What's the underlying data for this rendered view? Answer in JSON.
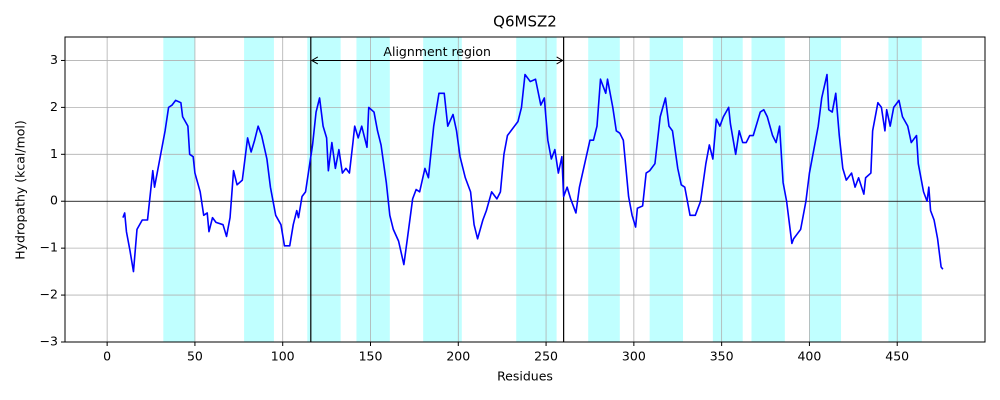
{
  "chart_data": {
    "type": "line",
    "title": "Q6MSZ2",
    "x_label": "Residues",
    "y_label": "Hydropathy (kcal/mol)",
    "xlim": [
      -24,
      500
    ],
    "ylim": [
      -3,
      3.5
    ],
    "xticks": [
      0,
      50,
      100,
      150,
      200,
      250,
      300,
      350,
      400,
      450
    ],
    "yticks": [
      {
        "value": -3,
        "label": "−3"
      },
      {
        "value": -2,
        "label": "−2"
      },
      {
        "value": -1,
        "label": "−1"
      },
      0,
      1,
      2,
      3
    ],
    "grid": true,
    "shaded_regions": [
      [
        32,
        50
      ],
      [
        78,
        95
      ],
      [
        114,
        133
      ],
      [
        142,
        161
      ],
      [
        180,
        202
      ],
      [
        233,
        256
      ],
      [
        274,
        292
      ],
      [
        309,
        328
      ],
      [
        345,
        362
      ],
      [
        367,
        386
      ],
      [
        400,
        418
      ],
      [
        445,
        464
      ]
    ],
    "shade_color": "#c0ffff",
    "vlines": [
      116,
      260
    ],
    "hlines": [
      0
    ],
    "annotation": {
      "text": "Alignment region",
      "x": [
        116,
        260
      ],
      "y": 3
    },
    "series": [
      {
        "name": "Q6MSZ2",
        "color": "#0000ff",
        "x": [
          9,
          10,
          11,
          13,
          15,
          17,
          20,
          23,
          26,
          27,
          30,
          33,
          35,
          37,
          39,
          42,
          43,
          46,
          47,
          49,
          50,
          53,
          55,
          57,
          58,
          60,
          62,
          66,
          68,
          70,
          72,
          74,
          77,
          80,
          82,
          84,
          86,
          88,
          91,
          93,
          96,
          99,
          101,
          104,
          106,
          108,
          109,
          111,
          113,
          115,
          117,
          119,
          121,
          123,
          125,
          126,
          128,
          130,
          132,
          134,
          136,
          138,
          140,
          141,
          143,
          145,
          148,
          149,
          152,
          154,
          156,
          159,
          161,
          163,
          166,
          169,
          171,
          174,
          176,
          178,
          181,
          183,
          186,
          189,
          192,
          194,
          197,
          199,
          201,
          204,
          207,
          209,
          211,
          214,
          216,
          219,
          222,
          224,
          226,
          228,
          231,
          234,
          236,
          238,
          241,
          244,
          247,
          249,
          251,
          253,
          255,
          257,
          259,
          260,
          262,
          264,
          267,
          269,
          272,
          275,
          277,
          279,
          281,
          284,
          285,
          288,
          290,
          292,
          294,
          297,
          299,
          301,
          302,
          305,
          307,
          309,
          312,
          315,
          318,
          320,
          322,
          325,
          327,
          329,
          332,
          335,
          338,
          341,
          343,
          345,
          347,
          349,
          351,
          354,
          355,
          358,
          360,
          362,
          364,
          366,
          368,
          372,
          374,
          376,
          379,
          381,
          383,
          385,
          387,
          390,
          391,
          393,
          395,
          398,
          400,
          403,
          405,
          407,
          410,
          411,
          413,
          415,
          417,
          419,
          421,
          424,
          426,
          428,
          431,
          432,
          435,
          436,
          439,
          441,
          443,
          444,
          446,
          448,
          451,
          453,
          456,
          458,
          461,
          462,
          465,
          467,
          468,
          469,
          471,
          473,
          475,
          476
        ],
        "values": [
          -0.35,
          -0.25,
          -0.65,
          -1.05,
          -1.5,
          -0.6,
          -0.4,
          -0.4,
          0.65,
          0.3,
          0.9,
          1.5,
          2.0,
          2.05,
          2.15,
          2.1,
          1.8,
          1.6,
          1.0,
          0.95,
          0.6,
          0.2,
          -0.3,
          -0.25,
          -0.65,
          -0.35,
          -0.45,
          -0.5,
          -0.75,
          -0.35,
          0.65,
          0.35,
          0.45,
          1.35,
          1.05,
          1.3,
          1.6,
          1.4,
          0.9,
          0.3,
          -0.3,
          -0.5,
          -0.95,
          -0.95,
          -0.5,
          -0.2,
          -0.35,
          0.1,
          0.2,
          0.7,
          1.2,
          1.9,
          2.2,
          1.6,
          1.35,
          0.65,
          1.25,
          0.7,
          1.1,
          0.6,
          0.7,
          0.6,
          1.25,
          1.6,
          1.35,
          1.6,
          1.15,
          2.0,
          1.9,
          1.5,
          1.2,
          0.4,
          -0.3,
          -0.6,
          -0.85,
          -1.35,
          -0.8,
          0.05,
          0.25,
          0.2,
          0.7,
          0.5,
          1.6,
          2.3,
          2.3,
          1.6,
          1.85,
          1.5,
          0.95,
          0.5,
          0.2,
          -0.5,
          -0.8,
          -0.4,
          -0.2,
          0.2,
          0.05,
          0.2,
          1.0,
          1.4,
          1.55,
          1.7,
          2.0,
          2.7,
          2.55,
          2.6,
          2.05,
          2.2,
          1.3,
          0.9,
          1.1,
          0.6,
          0.95,
          0.1,
          0.3,
          0.05,
          -0.25,
          0.3,
          0.8,
          1.3,
          1.3,
          1.6,
          2.6,
          2.3,
          2.6,
          2.0,
          1.5,
          1.45,
          1.3,
          0.1,
          -0.3,
          -0.55,
          -0.15,
          -0.1,
          0.6,
          0.65,
          0.8,
          1.8,
          2.2,
          1.6,
          1.5,
          0.7,
          0.35,
          0.3,
          -0.3,
          -0.3,
          0.0,
          0.8,
          1.2,
          0.9,
          1.75,
          1.6,
          1.8,
          2.0,
          1.65,
          1.0,
          1.5,
          1.25,
          1.25,
          1.4,
          1.4,
          1.9,
          1.95,
          1.8,
          1.4,
          1.25,
          1.6,
          0.4,
          0.0,
          -0.9,
          -0.8,
          -0.7,
          -0.6,
          0.0,
          0.6,
          1.2,
          1.6,
          2.2,
          2.7,
          1.95,
          1.9,
          2.3,
          1.4,
          0.7,
          0.45,
          0.6,
          0.3,
          0.5,
          0.15,
          0.5,
          0.6,
          1.5,
          2.1,
          2.0,
          1.5,
          1.95,
          1.6,
          2.0,
          2.15,
          1.8,
          1.6,
          1.25,
          1.4,
          0.8,
          0.2,
          0.0,
          0.3,
          -0.2,
          -0.4,
          -0.8,
          -1.4,
          -1.45
        ]
      }
    ]
  }
}
